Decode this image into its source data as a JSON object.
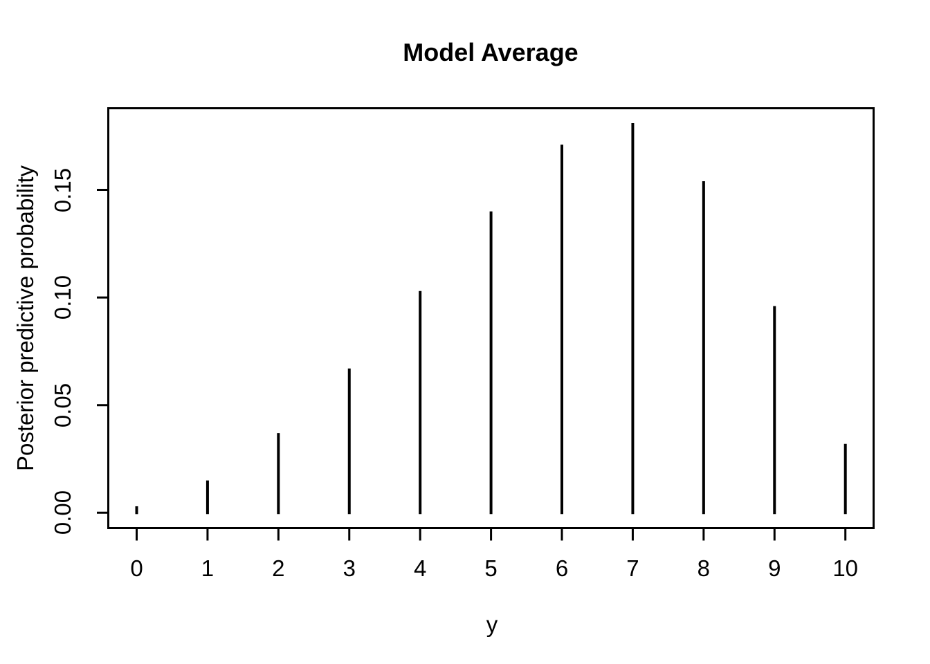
{
  "chart_data": {
    "type": "bar",
    "subtype": "spike-pmf",
    "title": "Model Average",
    "xlabel": "y",
    "ylabel": "Posterior predictive probability",
    "x": [
      0,
      1,
      2,
      3,
      4,
      5,
      6,
      7,
      8,
      9,
      10
    ],
    "values": [
      0.003,
      0.015,
      0.037,
      0.067,
      0.103,
      0.14,
      0.171,
      0.181,
      0.154,
      0.096,
      0.032
    ],
    "x_tick_labels": [
      "0",
      "1",
      "2",
      "3",
      "4",
      "5",
      "6",
      "7",
      "8",
      "9",
      "10"
    ],
    "y_ticks": [
      0,
      0.05,
      0.1,
      0.15
    ],
    "y_tick_labels": [
      "0.00",
      "0.05",
      "0.10",
      "0.15"
    ],
    "xlim": [
      -0.4,
      10.4
    ],
    "ylim": [
      -0.0072,
      0.1879
    ],
    "grid": false,
    "legend": false,
    "colors": {
      "line": "#000000",
      "text": "#000000",
      "background": "#ffffff"
    }
  }
}
